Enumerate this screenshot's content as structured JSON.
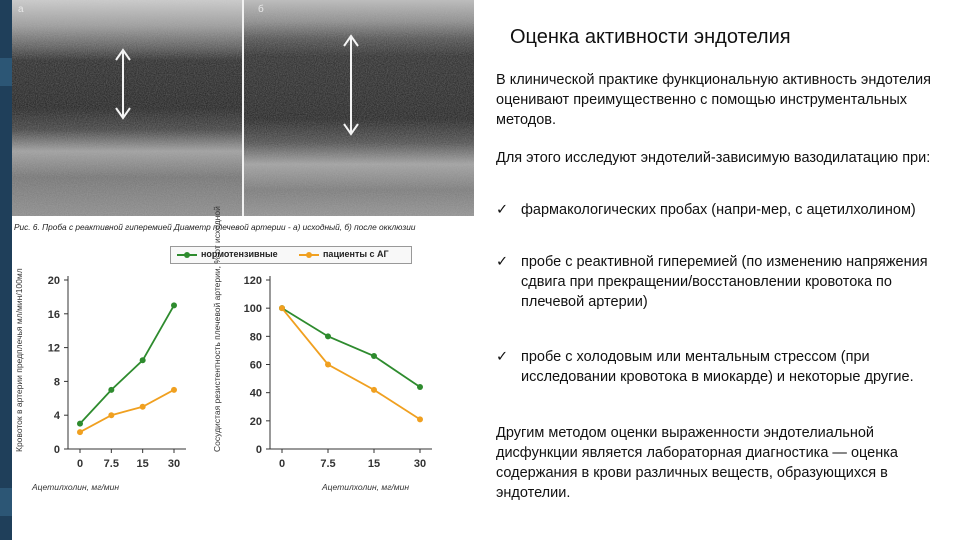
{
  "slide": {
    "title": "Оценка активности эндотелия",
    "para1": "В клинической практике функциональную активность эндотелия оценивают преимущественно с помощью инструментальных методов.",
    "para2": "Для этого исследуют эндотелий-зависимую вазодилатацию при:",
    "bullet_mark": "✓",
    "bullets": [
      "фармакологических пробах (напри-мер, с ацетилхолином)",
      "пробе с реактивной гиперемией (по изменению напряжения сдвига при прекращении/восстановлении кровотока по плечевой артерии)",
      "пробе с холодовым или ментальным стрессом (при исследовании кровотока в миокарде) и некоторые другие."
    ],
    "para3": "Другим методом оценки выраженности эндотелиальной дисфункции является лабораторная диагностика — оценка содержания в крови различных веществ, образующихся в эндотелии."
  },
  "figure": {
    "panel_a_label": "а",
    "panel_b_label": "б",
    "caption": "Рис. 6. Проба с реактивной гиперемией Диаметр плечевой артерии - а) исходный, б) после окклюзии",
    "colors": {
      "normotensive": "#2e8b2e",
      "hypertensive": "#f0a020"
    }
  },
  "legend": {
    "normotensive": "нормотензивные",
    "hypertensive": "пациенты с АГ"
  },
  "chart_data": [
    {
      "type": "line",
      "ylabel": "Кровоток в артерии предплечья мл/мин/100мл",
      "xlabel": "Ацетилхолин, мг/мин",
      "categories": [
        "0",
        "7.5",
        "15",
        "30"
      ],
      "yticks": [
        "0",
        "4",
        "8",
        "12",
        "16",
        "20"
      ],
      "ylim": [
        0,
        20
      ],
      "series": [
        {
          "name": "нормотензивные",
          "values": [
            3,
            7,
            10.5,
            17
          ]
        },
        {
          "name": "пациенты с АГ",
          "values": [
            2,
            4,
            5,
            7
          ]
        }
      ]
    },
    {
      "type": "line",
      "ylabel": "Сосудистая резистентность плечевой артерии, % от исходной",
      "xlabel": "Ацетилхолин, мг/мин",
      "categories": [
        "0",
        "7.5",
        "15",
        "30"
      ],
      "yticks": [
        "0",
        "20",
        "40",
        "60",
        "80",
        "100",
        "120"
      ],
      "ylim": [
        0,
        120
      ],
      "series": [
        {
          "name": "нормотензивные",
          "values": [
            100,
            80,
            66,
            44
          ]
        },
        {
          "name": "пациенты с АГ",
          "values": [
            100,
            60,
            42,
            21
          ]
        }
      ]
    }
  ]
}
